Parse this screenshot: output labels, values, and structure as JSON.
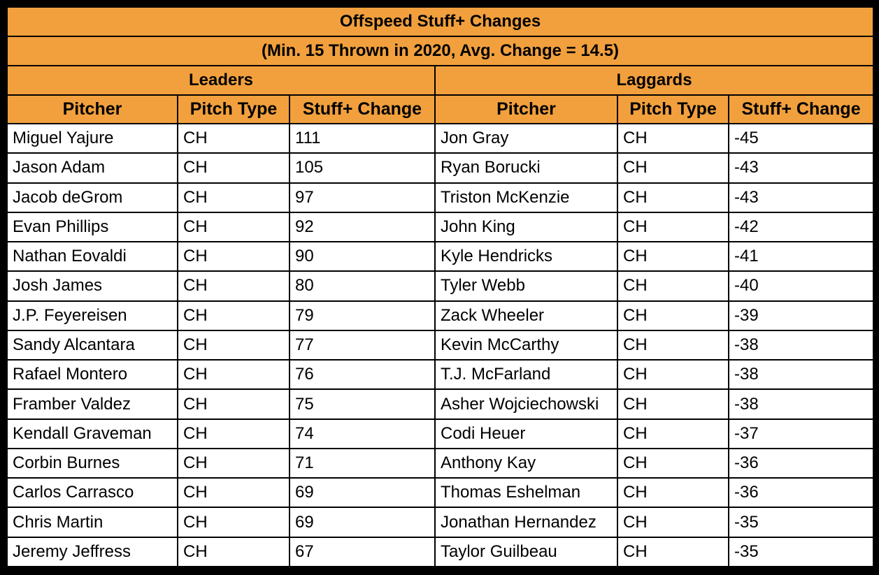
{
  "title": "Offspeed Stuff+ Changes",
  "subtitle": "(Min. 15 Thrown in 2020, Avg. Change = 14.5)",
  "leaders": {
    "heading": "Leaders",
    "columns": [
      "Pitcher",
      "Pitch Type",
      "Stuff+ Change"
    ],
    "rows": [
      [
        "Miguel Yajure",
        "CH",
        "111"
      ],
      [
        "Jason Adam",
        "CH",
        "105"
      ],
      [
        "Jacob deGrom",
        "CH",
        "97"
      ],
      [
        "Evan Phillips",
        "CH",
        "92"
      ],
      [
        "Nathan Eovaldi",
        "CH",
        "90"
      ],
      [
        "Josh James",
        "CH",
        "80"
      ],
      [
        "J.P. Feyereisen",
        "CH",
        "79"
      ],
      [
        "Sandy Alcantara",
        "CH",
        "77"
      ],
      [
        "Rafael Montero",
        "CH",
        "76"
      ],
      [
        "Framber Valdez",
        "CH",
        "75"
      ],
      [
        "Kendall Graveman",
        "CH",
        "74"
      ],
      [
        "Corbin Burnes",
        "CH",
        "71"
      ],
      [
        "Carlos Carrasco",
        "CH",
        "69"
      ],
      [
        "Chris Martin",
        "CH",
        "69"
      ],
      [
        "Jeremy Jeffress",
        "CH",
        "67"
      ]
    ]
  },
  "laggards": {
    "heading": "Laggards",
    "columns": [
      "Pitcher",
      "Pitch Type",
      "Stuff+ Change"
    ],
    "rows": [
      [
        "Jon Gray",
        "CH",
        "-45"
      ],
      [
        "Ryan Borucki",
        "CH",
        "-43"
      ],
      [
        "Triston McKenzie",
        "CH",
        "-43"
      ],
      [
        "John King",
        "CH",
        "-42"
      ],
      [
        "Kyle Hendricks",
        "CH",
        "-41"
      ],
      [
        "Tyler Webb",
        "CH",
        "-40"
      ],
      [
        "Zack Wheeler",
        "CH",
        "-39"
      ],
      [
        "Kevin McCarthy",
        "CH",
        "-38"
      ],
      [
        "T.J. McFarland",
        "CH",
        "-38"
      ],
      [
        "Asher Wojciechowski",
        "CH",
        "-38"
      ],
      [
        "Codi Heuer",
        "CH",
        "-37"
      ],
      [
        "Anthony Kay",
        "CH",
        "-36"
      ],
      [
        "Thomas Eshelman",
        "CH",
        "-36"
      ],
      [
        "Jonathan Hernandez",
        "CH",
        "-35"
      ],
      [
        "Taylor Guilbeau",
        "CH",
        "-35"
      ]
    ]
  },
  "colors": {
    "header_fill": "#f2a03d",
    "border": "#000000",
    "cell_fill": "#ffffff"
  }
}
